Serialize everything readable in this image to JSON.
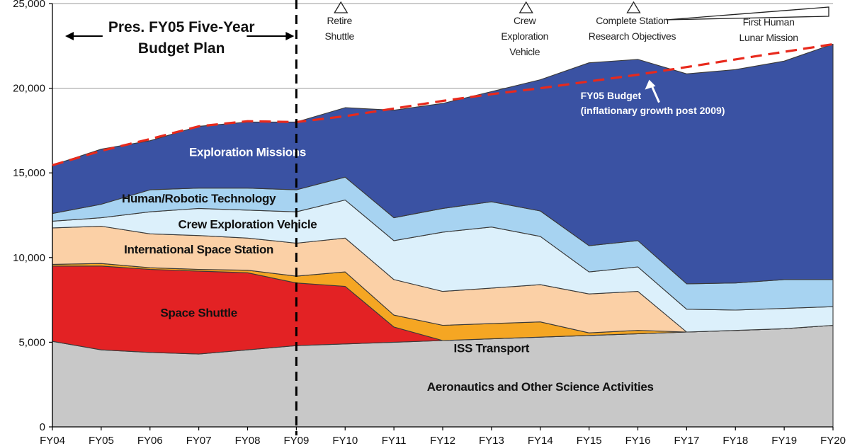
{
  "chart_data": {
    "type": "area",
    "stacked": true,
    "title": "",
    "xlabel": "",
    "ylabel": "",
    "ylim": [
      0,
      25000
    ],
    "yticks": [
      0,
      5000,
      10000,
      15000,
      20000,
      25000
    ],
    "ytick_labels": [
      "0",
      "5,000",
      "10,000",
      "15,000",
      "20,000",
      "25,000"
    ],
    "grid": "horizontal",
    "categories": [
      "FY04",
      "FY05",
      "FY06",
      "FY07",
      "FY08",
      "FY09",
      "FY10",
      "FY11",
      "FY12",
      "FY13",
      "FY14",
      "FY15",
      "FY16",
      "FY17",
      "FY18",
      "FY19",
      "FY20"
    ],
    "series": [
      {
        "name": "Aeronautics and Other Science Activities",
        "color": "#c8c8c8",
        "values": [
          5050,
          4550,
          4400,
          4300,
          4550,
          4800,
          4900,
          5000,
          5100,
          5200,
          5300,
          5400,
          5500,
          5600,
          5700,
          5800,
          6000
        ]
      },
      {
        "name": "Space Shuttle",
        "color": "#e32224",
        "values": [
          4450,
          4950,
          4900,
          4900,
          4550,
          3700,
          3400,
          900,
          0,
          0,
          0,
          0,
          0,
          0,
          0,
          0,
          0
        ]
      },
      {
        "name": "ISS Transport",
        "color": "#f5a623",
        "values": [
          100,
          150,
          100,
          100,
          150,
          400,
          850,
          700,
          900,
          900,
          900,
          150,
          200,
          0,
          0,
          0,
          0
        ]
      },
      {
        "name": "International Space Station",
        "color": "#fbd0a6",
        "values": [
          2150,
          2200,
          2000,
          2000,
          1900,
          1950,
          2000,
          2100,
          2000,
          2100,
          2200,
          2300,
          2300,
          0,
          0,
          0,
          0
        ]
      },
      {
        "name": "Crew Exploration Vehicle",
        "color": "#dcf0fb",
        "values": [
          400,
          500,
          1300,
          1600,
          1650,
          1850,
          2250,
          2300,
          3500,
          3600,
          2850,
          1300,
          1450,
          1350,
          1200,
          1200,
          1100
        ]
      },
      {
        "name": "Human/Robotic Technology",
        "color": "#a7d3f1",
        "values": [
          450,
          800,
          1300,
          1200,
          1300,
          1300,
          1350,
          1350,
          1400,
          1500,
          1500,
          1550,
          1550,
          1500,
          1600,
          1700,
          1600
        ]
      },
      {
        "name": "Exploration Missions",
        "color": "#3a52a3",
        "values": [
          2850,
          3250,
          2900,
          3650,
          3900,
          4000,
          4100,
          6350,
          6200,
          6500,
          7750,
          10800,
          10700,
          12400,
          12600,
          12900,
          13900
        ]
      }
    ],
    "budget_line": {
      "name": "FY05 Budget",
      "color": "#e8291c",
      "style": "dashed",
      "values": [
        15450,
        16300,
        17000,
        17750,
        18050,
        18000,
        18350,
        18800,
        19250,
        19650,
        20000,
        20400,
        20800,
        21250,
        21700,
        22150,
        22600
      ]
    },
    "area_labels": [
      {
        "series": "Exploration Missions",
        "text": "Exploration Missions",
        "color": "#ffffff"
      },
      {
        "series": "Human/Robotic Technology",
        "text": "Human/Robotic Technology",
        "color": "#111111"
      },
      {
        "series": "Crew Exploration Vehicle",
        "text": "Crew Exploration Vehicle",
        "color": "#111111"
      },
      {
        "series": "International Space Station",
        "text": "International Space Station",
        "color": "#111111"
      },
      {
        "series": "Space Shuttle",
        "text": "Space Shuttle",
        "color": "#111111"
      },
      {
        "series": "ISS Transport",
        "text": "ISS Transport",
        "color": "#111111"
      },
      {
        "series": "Aeronautics and Other Science Activities",
        "text": "Aeronautics and Other Science Activities",
        "color": "#111111"
      }
    ],
    "milestones": [
      {
        "x": "FY10",
        "lines": [
          "Retire",
          "Shuttle"
        ]
      },
      {
        "x": "FY14",
        "lines": [
          "Crew",
          "Exploration",
          "Vehicle"
        ]
      },
      {
        "x": "FY16",
        "lines": [
          "Complete Station",
          "Research Objectives"
        ]
      },
      {
        "x": "FY19",
        "lines": [
          "First Human",
          "Lunar Mission"
        ]
      }
    ],
    "plan_annotation": {
      "lines": [
        "Pres. FY05 Five-Year",
        "Budget Plan"
      ],
      "boundary_x": "FY09"
    },
    "budget_annotation": {
      "lines": [
        "FY05 Budget",
        "(inflationary growth post 2009)"
      ]
    }
  }
}
